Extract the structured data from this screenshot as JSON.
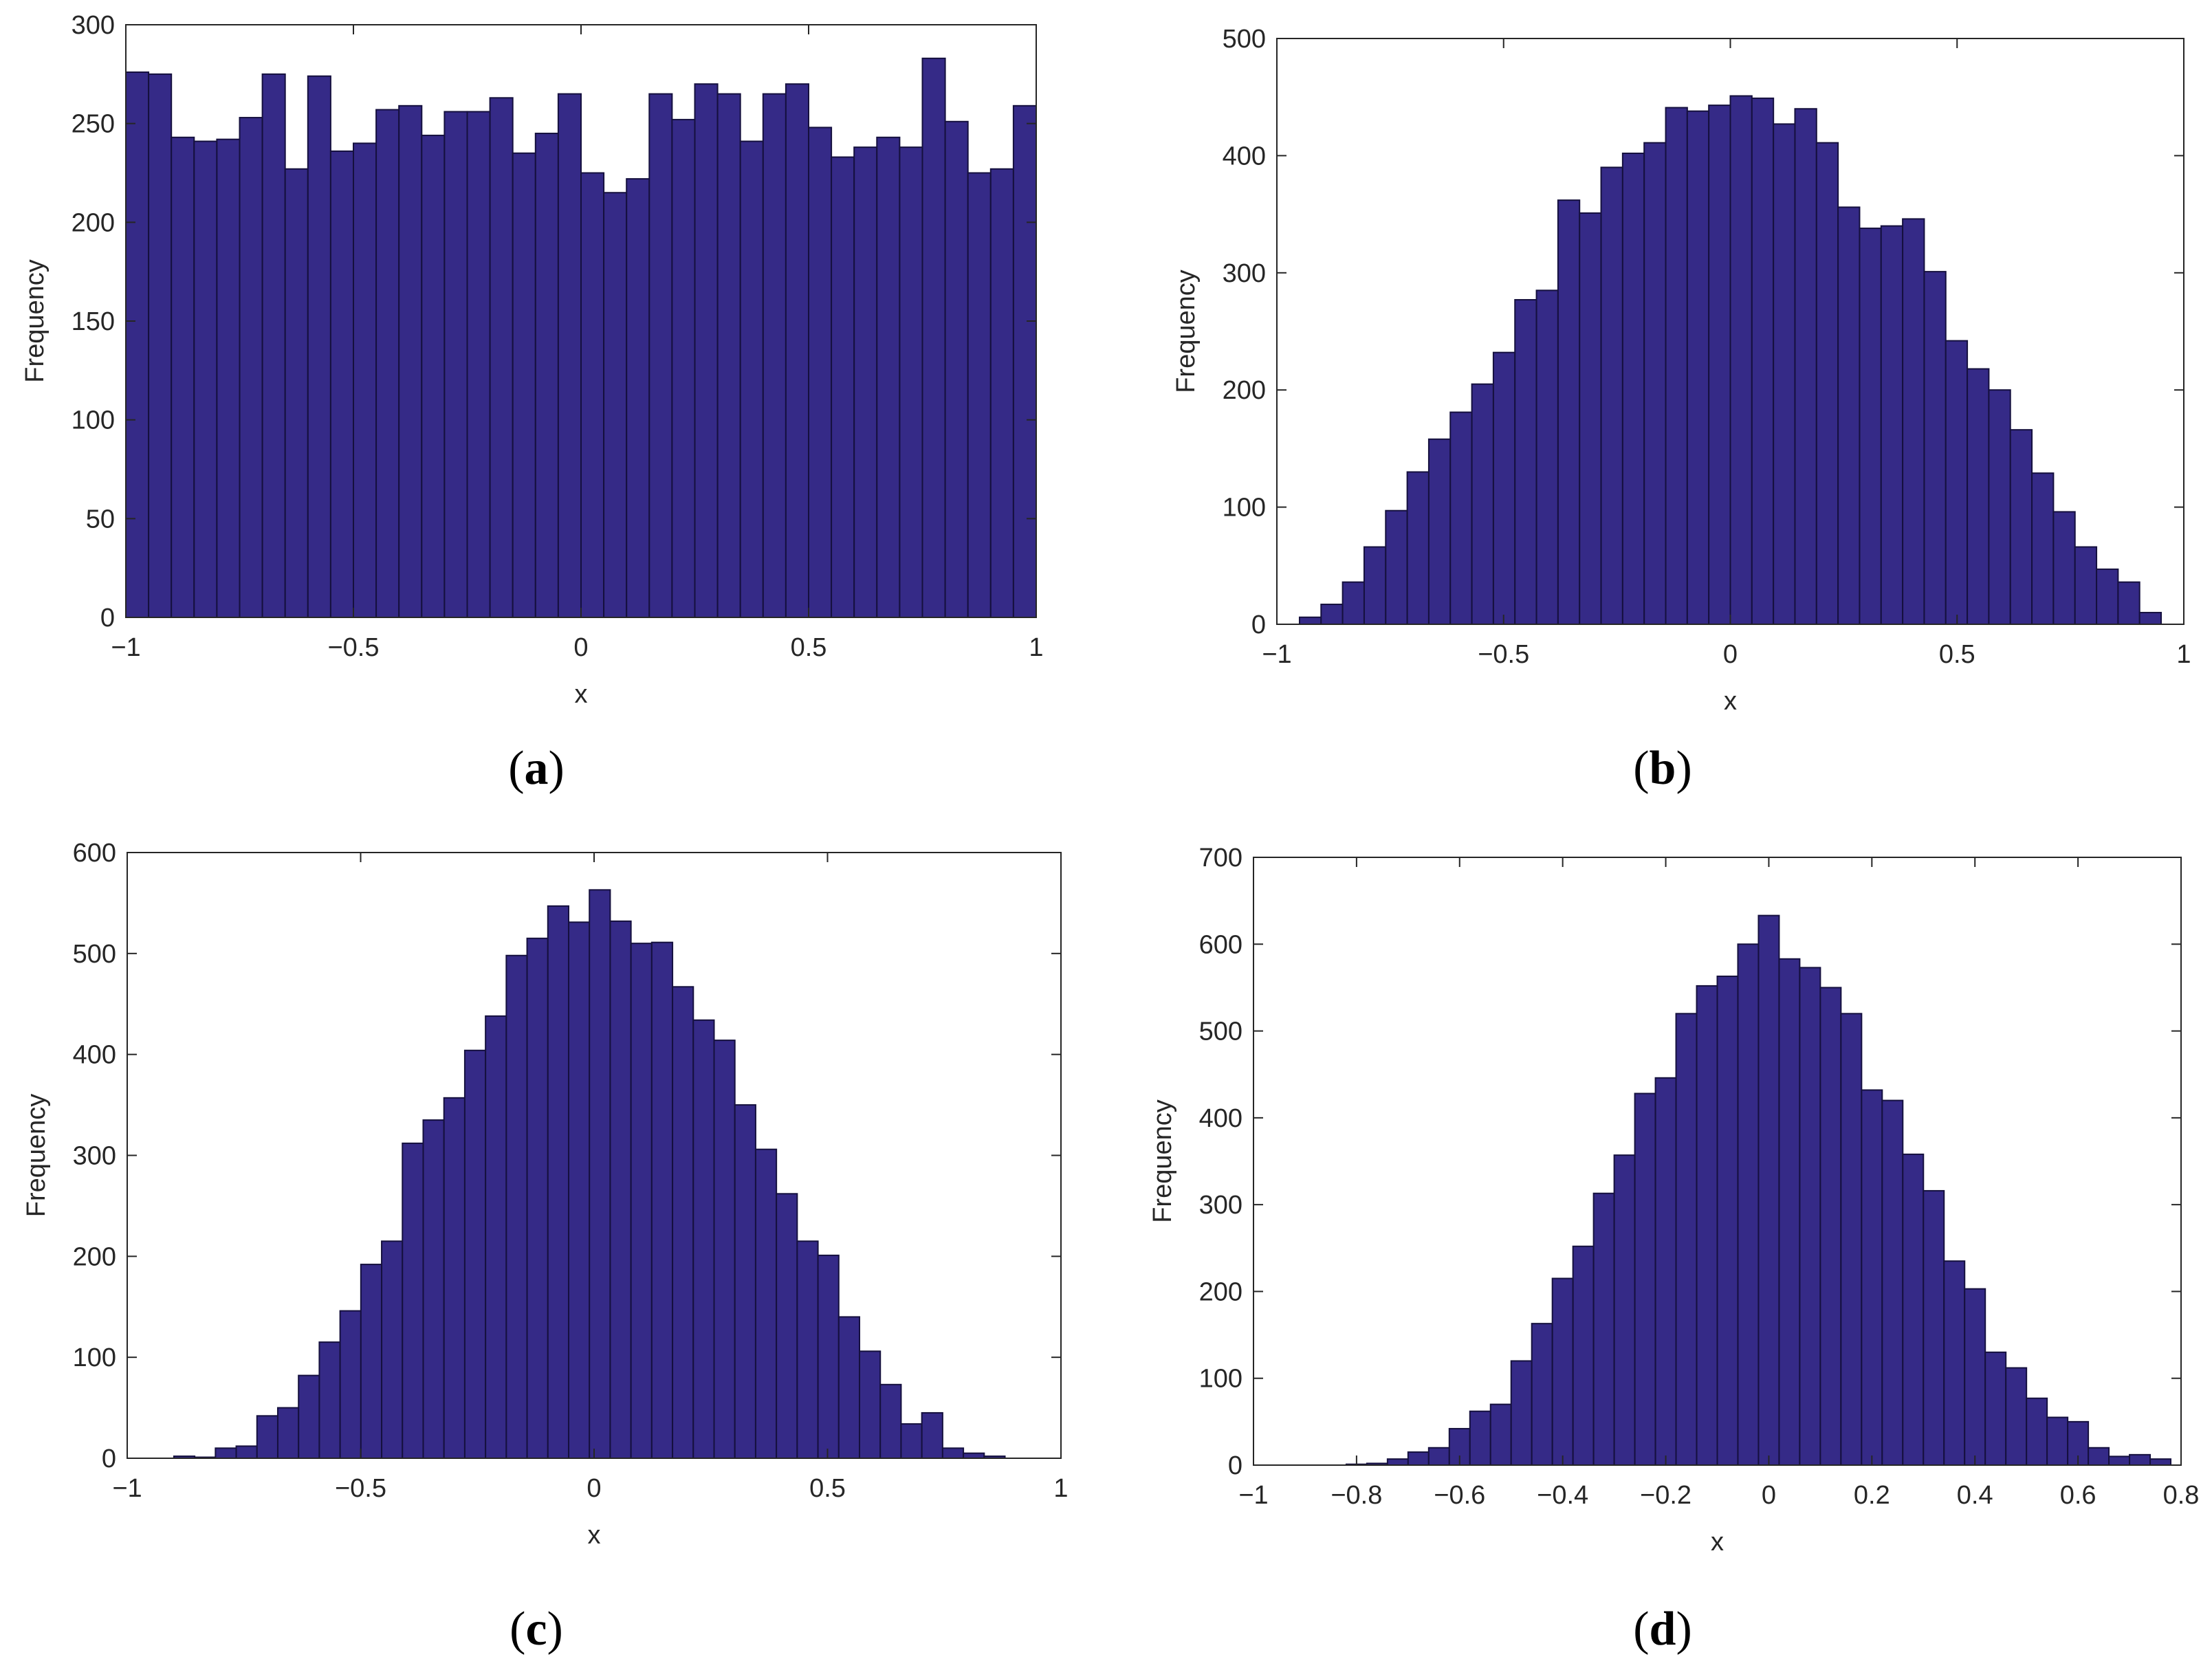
{
  "chart_data": [
    {
      "type": "histogram",
      "panel": "a",
      "caption": "(a)",
      "caption_open": "(",
      "caption_letter": "a",
      "caption_close": ")",
      "xlabel": "x",
      "ylabel": "Frequency",
      "xlim": [
        -1,
        1
      ],
      "ylim": [
        0,
        300
      ],
      "xticks": [
        -1,
        -0.5,
        0,
        0.5,
        1
      ],
      "xtick_labels": [
        "−1",
        "−0.5",
        "0",
        "0.5",
        "1"
      ],
      "yticks": [
        0,
        50,
        100,
        150,
        200,
        250,
        300
      ],
      "ytick_labels": [
        "0",
        "50",
        "100",
        "150",
        "200",
        "250",
        "300"
      ],
      "bins": {
        "start": -1,
        "width": 0.05
      },
      "values": [
        276,
        275,
        243,
        241,
        242,
        253,
        275,
        227,
        274,
        236,
        240,
        257,
        259,
        244,
        256,
        256,
        263,
        235,
        245,
        265,
        225,
        215,
        222,
        265,
        252,
        270,
        265,
        241,
        265,
        270,
        248,
        233,
        238,
        243,
        238,
        283,
        251,
        225,
        227,
        259
      ]
    },
    {
      "type": "histogram",
      "panel": "b",
      "caption": "(b)",
      "caption_open": "(",
      "caption_letter": "b",
      "caption_close": ")",
      "xlabel": "x",
      "ylabel": "Frequency",
      "xlim": [
        -1,
        1
      ],
      "ylim": [
        0,
        500
      ],
      "xticks": [
        -1,
        -0.5,
        0,
        0.5,
        1
      ],
      "xtick_labels": [
        "−1",
        "−0.5",
        "0",
        "0.5",
        "1"
      ],
      "yticks": [
        0,
        100,
        200,
        300,
        400,
        500
      ],
      "ytick_labels": [
        "0",
        "100",
        "200",
        "300",
        "400",
        "500"
      ],
      "bins": {
        "start": -0.95,
        "width": 0.0475
      },
      "values": [
        6,
        17,
        36,
        66,
        97,
        130,
        158,
        181,
        205,
        232,
        277,
        285,
        362,
        351,
        390,
        402,
        411,
        441,
        438,
        443,
        451,
        449,
        427,
        440,
        411,
        356,
        338,
        340,
        346,
        301,
        242,
        218,
        200,
        166,
        129,
        96,
        66,
        47,
        36,
        10
      ]
    },
    {
      "type": "histogram",
      "panel": "c",
      "caption": "(c)",
      "caption_open": "(",
      "caption_letter": "c",
      "caption_close": ")",
      "xlabel": "x",
      "ylabel": "Frequency",
      "xlim": [
        -1,
        1
      ],
      "ylim": [
        0,
        600
      ],
      "xticks": [
        -1,
        -0.5,
        0,
        0.5,
        1
      ],
      "xtick_labels": [
        "−1",
        "−0.5",
        "0",
        "0.5",
        "1"
      ],
      "yticks": [
        0,
        100,
        200,
        300,
        400,
        500,
        600
      ],
      "ytick_labels": [
        "0",
        "100",
        "200",
        "300",
        "400",
        "500",
        "600"
      ],
      "bins": {
        "start": -0.9,
        "width": 0.0445
      },
      "values": [
        2,
        1,
        10,
        12,
        42,
        50,
        82,
        115,
        146,
        192,
        215,
        312,
        335,
        357,
        404,
        438,
        498,
        515,
        547,
        531,
        563,
        532,
        510,
        511,
        467,
        434,
        414,
        350,
        306,
        262,
        215,
        201,
        140,
        106,
        73,
        34,
        45,
        10,
        5,
        2
      ]
    },
    {
      "type": "histogram",
      "panel": "d",
      "caption": "(d)",
      "caption_open": "(",
      "caption_letter": "d",
      "caption_close": ")",
      "xlabel": "x",
      "ylabel": "Frequency",
      "xlim": [
        -1,
        0.8
      ],
      "ylim": [
        0,
        700
      ],
      "xticks": [
        -1,
        -0.8,
        -0.6,
        -0.4,
        -0.2,
        0,
        0.2,
        0.4,
        0.6,
        0.8
      ],
      "xtick_labels": [
        "−1",
        "−0.8",
        "−0.6",
        "−0.4",
        "−0.2",
        "0",
        "0.2",
        "0.4",
        "0.6",
        "0.8"
      ],
      "yticks": [
        0,
        100,
        200,
        300,
        400,
        500,
        600,
        700
      ],
      "ytick_labels": [
        "0",
        "100",
        "200",
        "300",
        "400",
        "500",
        "600",
        "700"
      ],
      "bins": {
        "start": -0.82,
        "width": 0.04
      },
      "values": [
        1,
        2,
        7,
        15,
        20,
        42,
        62,
        70,
        120,
        163,
        215,
        252,
        313,
        357,
        428,
        446,
        520,
        552,
        563,
        600,
        633,
        583,
        573,
        550,
        520,
        432,
        420,
        358,
        316,
        235,
        203,
        130,
        112,
        77,
        55,
        50,
        20,
        10,
        12,
        7
      ]
    }
  ],
  "colors": {
    "bar_fill": "#352a87",
    "bar_edge": "#15103e",
    "axis": "#262626",
    "background": "#ffffff"
  }
}
